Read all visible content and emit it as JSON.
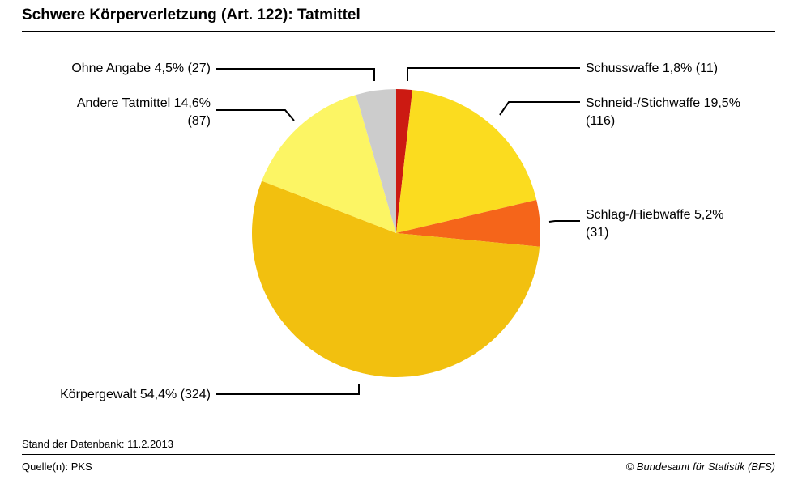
{
  "header": {
    "title": "Schwere Körperverletzung (Art. 122): Tatmittel"
  },
  "footer": {
    "stand": "Stand der Datenbank: 11.2.2013",
    "quelle": "Quelle(n): PKS",
    "copyright": "© Bundesamt für Statistik (BFS)"
  },
  "chart_data": {
    "type": "pie",
    "title": "Schwere Körperverletzung (Art. 122): Tatmittel",
    "start": "12 o'clock, clockwise",
    "slices": [
      {
        "label": "Schusswaffe",
        "percent": 1.8,
        "count": 11,
        "color": "#cc1a12",
        "label_lines": [
          "Schusswaffe 1,8% (11)"
        ],
        "side": "right"
      },
      {
        "label": "Schneid-/Stichwaffe",
        "percent": 19.5,
        "count": 116,
        "color": "#fbdc1f",
        "label_lines": [
          "Schneid-/Stichwaffe 19,5%",
          "(116)"
        ],
        "side": "right"
      },
      {
        "label": "Schlag-/Hiebwaffe",
        "percent": 5.2,
        "count": 31,
        "color": "#f5651a",
        "label_lines": [
          "Schlag-/Hiebwaffe 5,2%",
          "(31)"
        ],
        "side": "right"
      },
      {
        "label": "Körpergewalt",
        "percent": 54.4,
        "count": 324,
        "color": "#f2c00f",
        "label_lines": [
          "Körpergewalt 54,4% (324)"
        ],
        "side": "left"
      },
      {
        "label": "Andere Tatmittel",
        "percent": 14.6,
        "count": 87,
        "color": "#fcf564",
        "label_lines": [
          "Andere Tatmittel 14,6%",
          "(87)"
        ],
        "side": "left"
      },
      {
        "label": "Ohne Angabe",
        "percent": 4.5,
        "count": 27,
        "color": "#cccccc",
        "label_lines": [
          "Ohne Angabe 4,5% (27)"
        ],
        "side": "left"
      }
    ]
  }
}
